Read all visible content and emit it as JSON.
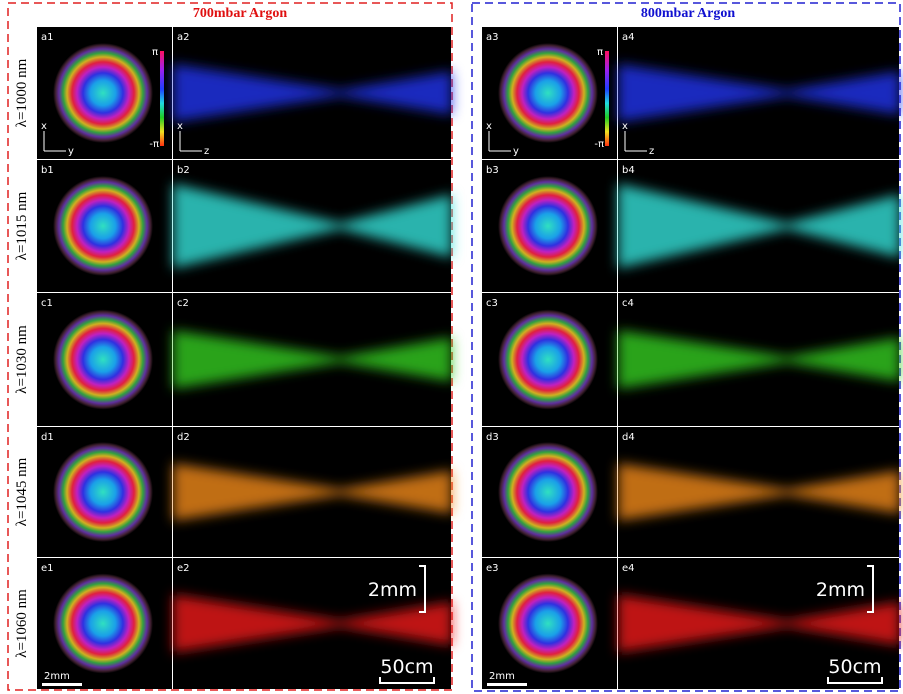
{
  "header": {
    "left_title": "700mbar Argon",
    "right_title": "800mbar Argon"
  },
  "rows": [
    {
      "label": "λ=1000 nm",
      "panels": [
        "a1",
        "a2",
        "a3",
        "a4"
      ],
      "color": "#2233ee"
    },
    {
      "label": "λ=1015 nm",
      "panels": [
        "b1",
        "b2",
        "b3",
        "b4"
      ],
      "color": "#33e0d8"
    },
    {
      "label": "λ=1030 nm",
      "panels": [
        "c1",
        "c2",
        "c3",
        "c4"
      ],
      "color": "#33cc22"
    },
    {
      "label": "λ=1045 nm",
      "panels": [
        "d1",
        "d2",
        "d3",
        "d4"
      ],
      "color": "#f08a1a"
    },
    {
      "label": "λ=1060 nm",
      "panels": [
        "e1",
        "e2",
        "e3",
        "e4"
      ],
      "color": "#ee1a1a"
    }
  ],
  "axis_labels": {
    "x": "x",
    "y": "y",
    "z": "z"
  },
  "colorbar": {
    "max": "π",
    "min": "-π"
  },
  "scale_bars": {
    "image": "2mm",
    "vertical": "2mm",
    "horizontal": "50cm"
  }
}
